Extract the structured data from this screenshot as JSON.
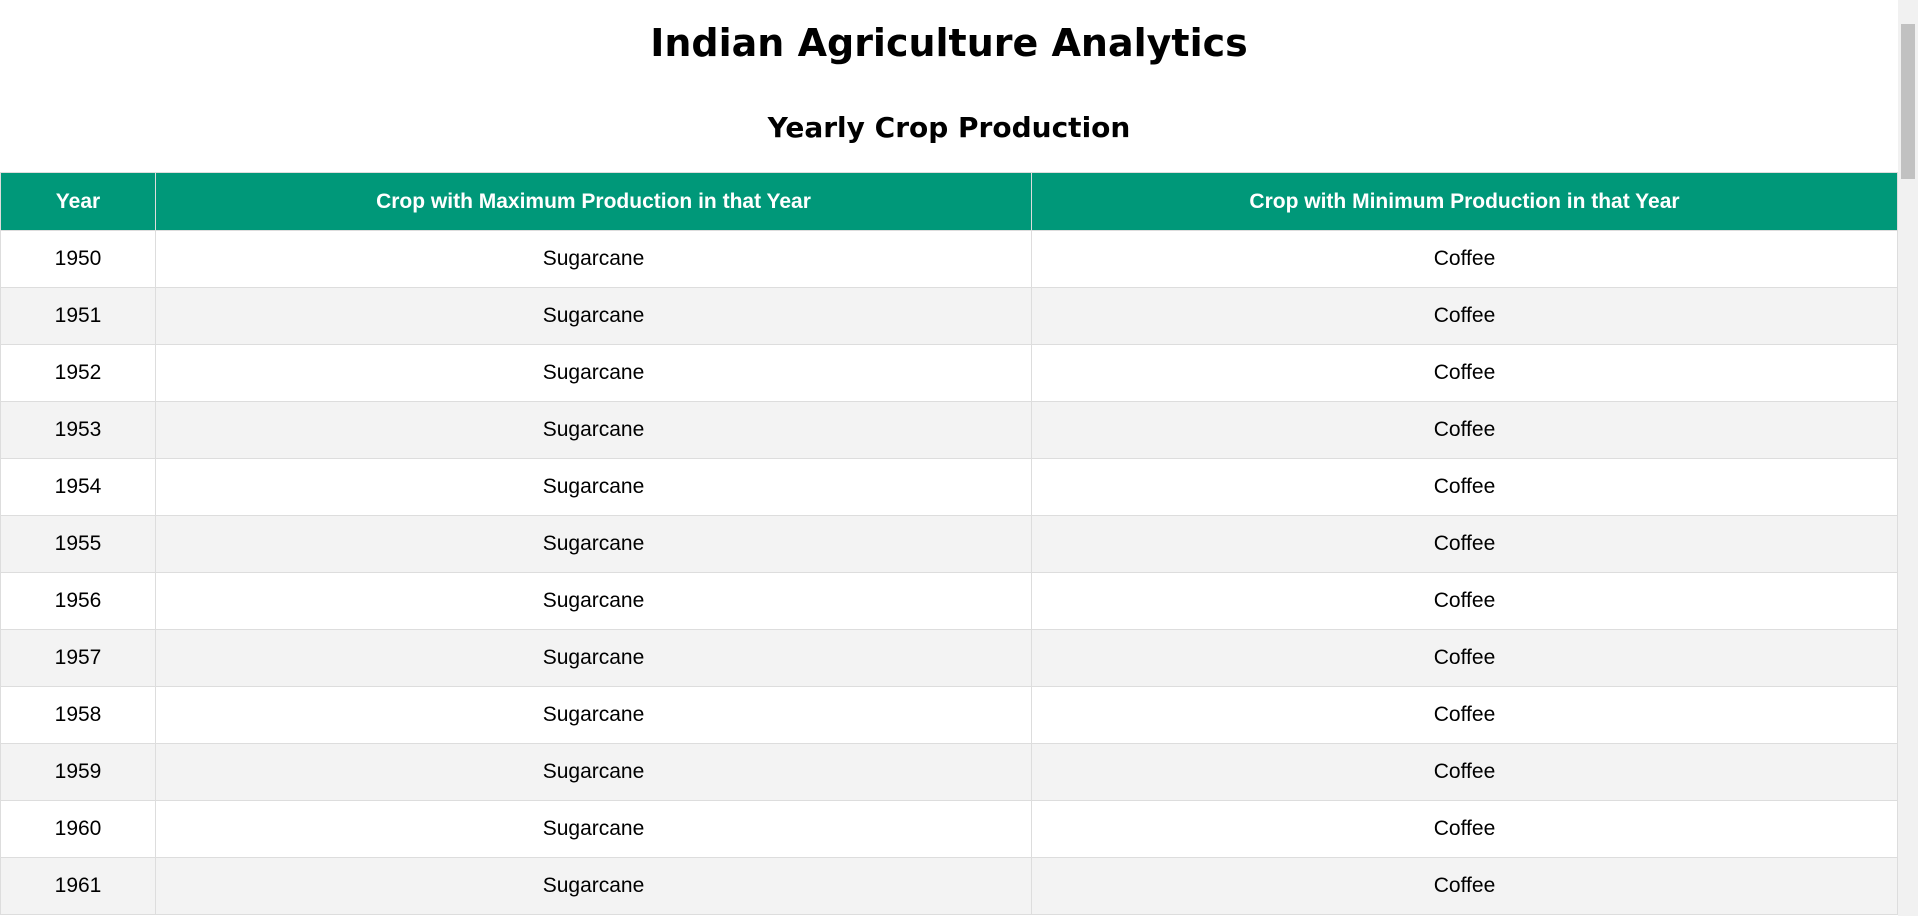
{
  "header": {
    "title": "Indian Agriculture Analytics",
    "subtitle": "Yearly Crop Production"
  },
  "table": {
    "columns": [
      "Year",
      "Crop with Maximum Production in that Year",
      "Crop with Minimum Production in that Year"
    ],
    "rows": [
      [
        "1950",
        "Sugarcane",
        "Coffee"
      ],
      [
        "1951",
        "Sugarcane",
        "Coffee"
      ],
      [
        "1952",
        "Sugarcane",
        "Coffee"
      ],
      [
        "1953",
        "Sugarcane",
        "Coffee"
      ],
      [
        "1954",
        "Sugarcane",
        "Coffee"
      ],
      [
        "1955",
        "Sugarcane",
        "Coffee"
      ],
      [
        "1956",
        "Sugarcane",
        "Coffee"
      ],
      [
        "1957",
        "Sugarcane",
        "Coffee"
      ],
      [
        "1958",
        "Sugarcane",
        "Coffee"
      ],
      [
        "1959",
        "Sugarcane",
        "Coffee"
      ],
      [
        "1960",
        "Sugarcane",
        "Coffee"
      ],
      [
        "1961",
        "Sugarcane",
        "Coffee"
      ]
    ]
  }
}
